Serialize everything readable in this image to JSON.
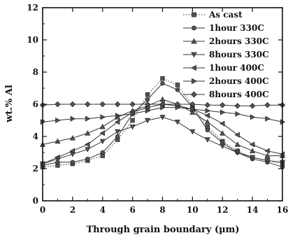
{
  "chart_data": {
    "type": "line",
    "title": "",
    "xlabel": "Through grain boundary (µm)",
    "ylabel": "wt.% Al",
    "xlim": [
      0,
      16
    ],
    "ylim": [
      0,
      12
    ],
    "xticks": [
      "0",
      "2",
      "4",
      "6",
      "8",
      "10",
      "12",
      "14",
      "16"
    ],
    "yticks": [
      "0",
      "2",
      "4",
      "6",
      "8",
      "10",
      "12"
    ],
    "grid": false,
    "legend_position": "top-right",
    "x": [
      0,
      1,
      2,
      3,
      4,
      5,
      6,
      7,
      8,
      9,
      10,
      11,
      12,
      13,
      14,
      15,
      16
    ],
    "series": [
      {
        "name": "As cast",
        "marker": "square",
        "dash": "dotted",
        "values": [
          2.1,
          2.2,
          2.3,
          2.5,
          2.8,
          3.8,
          5.0,
          6.6,
          7.6,
          7.2,
          5.9,
          4.6,
          3.7,
          3.1,
          2.7,
          2.5,
          2.3
        ]
      },
      {
        "name": "1hour  330C",
        "marker": "circle",
        "dash": "solid",
        "values": [
          2.2,
          2.4,
          2.4,
          2.6,
          3.0,
          4.0,
          5.4,
          6.3,
          7.3,
          6.9,
          5.8,
          4.4,
          3.6,
          3.0,
          2.6,
          2.4,
          2.1
        ]
      },
      {
        "name": "2hours 330C",
        "marker": "triangle-up",
        "dash": "solid",
        "values": [
          3.5,
          3.7,
          3.9,
          4.2,
          4.6,
          5.2,
          5.6,
          5.9,
          6.3,
          6.0,
          5.5,
          4.9,
          4.2,
          3.5,
          3.1,
          2.8,
          2.8
        ]
      },
      {
        "name": "8hours 330C",
        "marker": "triangle-down",
        "dash": "solid",
        "values": [
          2.3,
          2.6,
          2.9,
          3.2,
          3.7,
          4.3,
          4.6,
          5.0,
          5.2,
          4.9,
          4.3,
          3.8,
          3.4,
          3.0,
          2.7,
          2.5,
          2.4
        ]
      },
      {
        "name": "1hour  400C",
        "marker": "triangle-left",
        "dash": "solid",
        "values": [
          2.3,
          2.7,
          3.1,
          3.5,
          4.2,
          4.9,
          5.5,
          5.8,
          6.0,
          5.9,
          5.7,
          5.3,
          4.8,
          4.1,
          3.5,
          3.1,
          2.9
        ]
      },
      {
        "name": "2hours 400C",
        "marker": "triangle-right",
        "dash": "solid",
        "values": [
          4.9,
          5.0,
          5.1,
          5.1,
          5.2,
          5.3,
          5.4,
          5.6,
          5.8,
          5.8,
          5.7,
          5.6,
          5.5,
          5.4,
          5.2,
          5.1,
          4.9
        ]
      },
      {
        "name": "8hours 400C",
        "marker": "diamond",
        "dash": "solid",
        "values": [
          5.95,
          6.0,
          6.0,
          6.0,
          6.0,
          6.0,
          6.0,
          6.0,
          6.0,
          6.0,
          6.0,
          5.95,
          5.95,
          5.9,
          5.9,
          5.95,
          5.95
        ]
      }
    ]
  }
}
